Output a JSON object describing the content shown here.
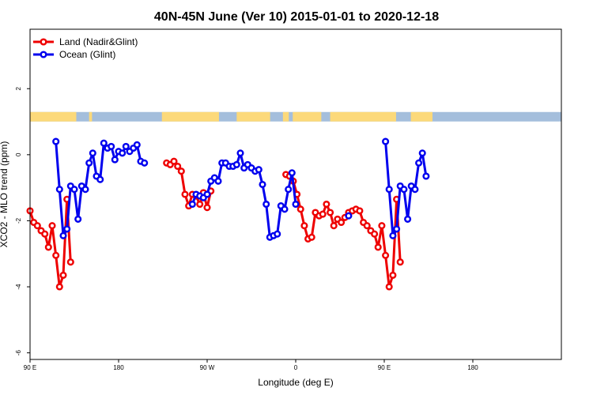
{
  "chart_data": {
    "type": "line",
    "title": "40N-45N June (Ver 10)   2015-01-01 to 2020-12-18",
    "xlabel": "Longitude (deg E)",
    "ylabel": "XCO2 - MLO trend (ppm)",
    "xlim": [
      90,
      630
    ],
    "ylim": [
      -6.2,
      3.8
    ],
    "x_ticks": [
      {
        "value": 90,
        "label": "90 E"
      },
      {
        "value": 180,
        "label": "180"
      },
      {
        "value": 270,
        "label": "90 W"
      },
      {
        "value": 360,
        "label": "0"
      },
      {
        "value": 450,
        "label": "90 E"
      },
      {
        "value": 540,
        "label": "180"
      }
    ],
    "y_ticks": [
      {
        "value": -6,
        "label": "-6"
      },
      {
        "value": -4,
        "label": "-4"
      },
      {
        "value": -2,
        "label": "-2"
      },
      {
        "value": 0,
        "label": "0"
      },
      {
        "value": 2,
        "label": "2"
      }
    ],
    "grid": false,
    "legend_position": "top-left",
    "land_ocean_strip": {
      "y_center": 1.15,
      "ocean_color": "#a4bedc",
      "land_color": "#fcd97a",
      "land_ranges": [
        [
          90,
          137
        ],
        [
          150,
          153
        ],
        [
          224,
          282
        ],
        [
          300,
          334
        ],
        [
          347,
          353
        ],
        [
          357,
          386
        ],
        [
          395,
          462
        ],
        [
          477,
          499
        ]
      ]
    },
    "series": [
      {
        "name": "Land (Nadir&Glint)",
        "color": "#ee0000",
        "segments": [
          [
            [
              90,
              -1.7
            ],
            [
              93.75,
              -2.05
            ],
            [
              97.5,
              -2.15
            ],
            [
              101.25,
              -2.3
            ],
            [
              105,
              -2.4
            ],
            [
              108.75,
              -2.8
            ],
            [
              112.5,
              -2.15
            ],
            [
              116.25,
              -3.05
            ],
            [
              120,
              -4.0
            ],
            [
              123.75,
              -3.65
            ],
            [
              127.5,
              -1.35
            ],
            [
              131.25,
              -3.25
            ]
          ],
          [
            [
              228.75,
              -0.25
            ],
            [
              232.5,
              -0.3
            ],
            [
              236.25,
              -0.2
            ],
            [
              240,
              -0.35
            ],
            [
              243.75,
              -0.5
            ],
            [
              247.5,
              -1.2
            ],
            [
              251.25,
              -1.55
            ],
            [
              255,
              -1.2
            ],
            [
              258.75,
              -1.25
            ],
            [
              262.5,
              -1.5
            ],
            [
              266.25,
              -1.15
            ],
            [
              270,
              -1.6
            ],
            [
              273.75,
              -1.1
            ]
          ],
          [
            [
              350,
              -0.6
            ],
            [
              353.75,
              -0.65
            ],
            [
              357.5,
              -0.8
            ],
            [
              361.25,
              -1.2
            ],
            [
              365,
              -1.65
            ],
            [
              368.75,
              -2.15
            ],
            [
              372.5,
              -2.55
            ],
            [
              376.25,
              -2.5
            ],
            [
              380,
              -1.75
            ],
            [
              383.75,
              -1.85
            ],
            [
              387.5,
              -1.8
            ],
            [
              391.25,
              -1.5
            ],
            [
              395,
              -1.75
            ],
            [
              398.75,
              -2.15
            ],
            [
              402.5,
              -1.95
            ],
            [
              406.25,
              -2.05
            ],
            [
              410,
              -1.9
            ],
            [
              413.75,
              -1.75
            ],
            [
              417.5,
              -1.7
            ],
            [
              421.25,
              -1.65
            ],
            [
              425,
              -1.7
            ],
            [
              428.75,
              -2.05
            ],
            [
              432.5,
              -2.15
            ],
            [
              436.25,
              -2.3
            ],
            [
              440,
              -2.4
            ],
            [
              443.75,
              -2.8
            ],
            [
              447.5,
              -2.15
            ],
            [
              451.25,
              -3.05
            ],
            [
              455,
              -4.0
            ],
            [
              458.75,
              -3.65
            ],
            [
              462.5,
              -1.35
            ],
            [
              466.25,
              -3.25
            ]
          ]
        ]
      },
      {
        "name": "Ocean (Glint)",
        "color": "#0000ee",
        "segments": [
          [
            [
              116.25,
              0.4
            ],
            [
              120,
              -1.05
            ],
            [
              123.75,
              -2.45
            ],
            [
              127.5,
              -2.25
            ],
            [
              131.25,
              -0.95
            ],
            [
              135,
              -1.05
            ],
            [
              138.75,
              -1.95
            ],
            [
              142.5,
              -0.95
            ],
            [
              146.25,
              -1.05
            ],
            [
              150,
              -0.25
            ],
            [
              153.75,
              0.05
            ],
            [
              157.5,
              -0.65
            ],
            [
              161.25,
              -0.75
            ],
            [
              165,
              0.35
            ],
            [
              168.75,
              0.2
            ],
            [
              172.5,
              0.25
            ],
            [
              176.25,
              -0.15
            ],
            [
              180,
              0.1
            ],
            [
              183.75,
              0.05
            ],
            [
              187.5,
              0.25
            ],
            [
              191.25,
              0.1
            ],
            [
              195,
              0.2
            ],
            [
              198.75,
              0.3
            ],
            [
              202.5,
              -0.2
            ],
            [
              206.25,
              -0.25
            ]
          ],
          [
            [
              255,
              -1.5
            ],
            [
              258.75,
              -1.2
            ],
            [
              262.5,
              -1.25
            ],
            [
              266.25,
              -1.3
            ],
            [
              270,
              -1.2
            ],
            [
              273.75,
              -0.8
            ],
            [
              277.5,
              -0.7
            ],
            [
              281.25,
              -0.8
            ],
            [
              285,
              -0.25
            ],
            [
              288.75,
              -0.25
            ],
            [
              292.5,
              -0.35
            ],
            [
              296.25,
              -0.35
            ],
            [
              300,
              -0.3
            ],
            [
              303.75,
              0.05
            ],
            [
              307.5,
              -0.4
            ],
            [
              311.25,
              -0.3
            ],
            [
              315,
              -0.4
            ],
            [
              318.75,
              -0.5
            ],
            [
              322.5,
              -0.45
            ],
            [
              326.25,
              -0.9
            ],
            [
              330,
              -1.5
            ],
            [
              333.75,
              -2.5
            ],
            [
              337.5,
              -2.45
            ],
            [
              341.25,
              -2.4
            ],
            [
              345,
              -1.55
            ],
            [
              348.75,
              -1.65
            ],
            [
              352.5,
              -1.05
            ],
            [
              356.25,
              -0.55
            ],
            [
              360,
              -1.5
            ]
          ],
          [
            [
              413.75,
              -1.85
            ]
          ],
          [
            [
              451.25,
              0.4
            ],
            [
              455,
              -1.05
            ],
            [
              458.75,
              -2.45
            ],
            [
              462.5,
              -2.25
            ],
            [
              466.25,
              -0.95
            ],
            [
              470,
              -1.05
            ],
            [
              473.75,
              -1.95
            ],
            [
              477.5,
              -0.95
            ],
            [
              481.25,
              -1.05
            ],
            [
              485,
              -0.25
            ],
            [
              488.75,
              0.05
            ],
            [
              492.5,
              -0.65
            ]
          ]
        ]
      }
    ]
  }
}
